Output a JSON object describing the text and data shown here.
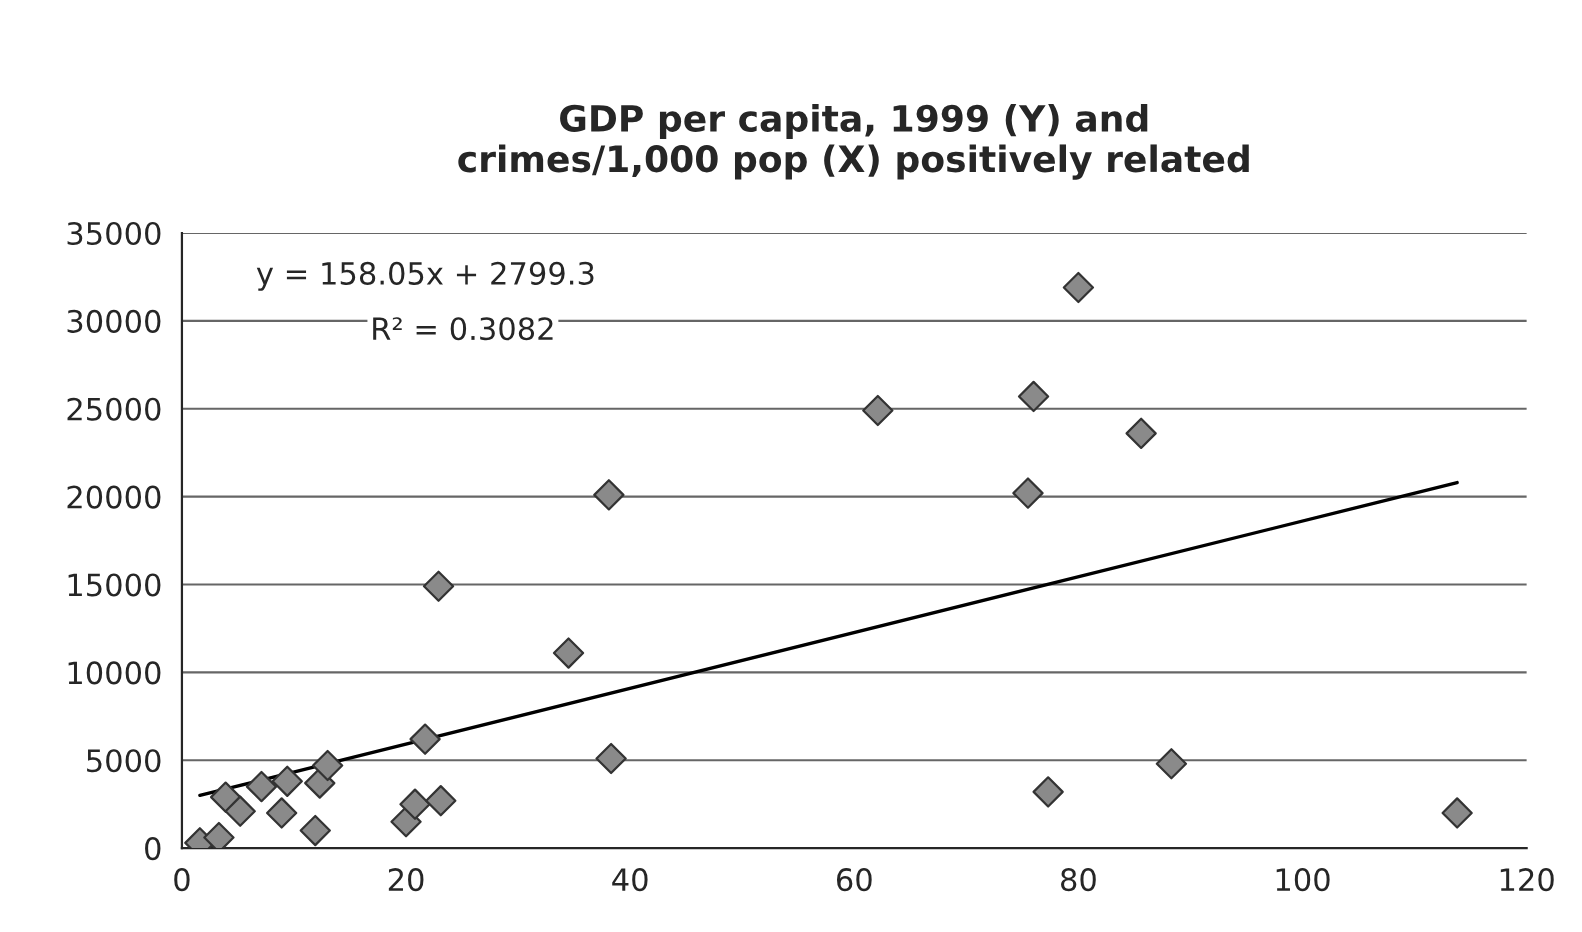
{
  "chart_data": {
    "type": "scatter",
    "title": "GDP per capita, 1999 (Y) and\ncrimes/1,000 pop (X) positively related",
    "series": [
      {
        "color": "#8a8a8a",
        "marker": "diamond",
        "x": [
          1.6,
          3.3,
          3.9,
          5.2,
          7.1,
          8.9,
          9.4,
          11.9,
          12.3,
          13.0,
          20.0,
          20.8,
          21.7,
          23.1,
          22.9,
          34.5,
          38.3,
          38.1,
          62.1,
          76.0,
          85.6,
          75.5,
          80.0,
          77.3,
          88.3,
          113.8
        ],
        "values": [
          300,
          600,
          2900,
          2100,
          3500,
          2000,
          3800,
          1000,
          3700,
          4700,
          1500,
          2500,
          6200,
          2700,
          14900,
          11100,
          5100,
          20100,
          24900,
          25700,
          23600,
          20200,
          31900,
          3200,
          4800,
          2000
        ]
      },
      {
        "type": "line",
        "color": "#000000",
        "marker": "none",
        "line_style": "solid",
        "x": [
          1.6,
          113.8
        ],
        "values": [
          3000,
          20800
        ]
      }
    ],
    "annotations": [
      "y = 158.05x + 2799.3",
      "R² = 0.3082"
    ],
    "xlim": [
      0,
      120
    ],
    "xticks": [
      0,
      20,
      40,
      60,
      80,
      100,
      120
    ],
    "ylim": [
      0,
      35000
    ],
    "yticks": [
      0,
      5000,
      10000,
      15000,
      20000,
      25000,
      30000,
      35000
    ],
    "grid": "y",
    "legend": false
  }
}
